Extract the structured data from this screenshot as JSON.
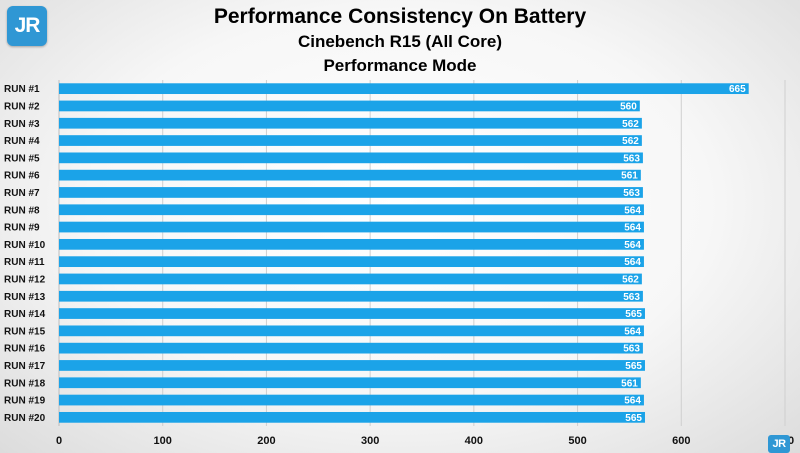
{
  "logo": {
    "text": "JR"
  },
  "chart_data": {
    "type": "bar",
    "orientation": "horizontal",
    "title": "Performance Consistency On Battery",
    "subtitle": "Cinebench R15 (All Core)",
    "subtitle2": "Performance Mode",
    "categories": [
      "RUN #1",
      "RUN #2",
      "RUN #3",
      "RUN #4",
      "RUN #5",
      "RUN #6",
      "RUN #7",
      "RUN #8",
      "RUN #9",
      "RUN #10",
      "RUN #11",
      "RUN #12",
      "RUN #13",
      "RUN #14",
      "RUN #15",
      "RUN #16",
      "RUN #17",
      "RUN #18",
      "RUN #19",
      "RUN #20"
    ],
    "values": [
      665,
      560,
      562,
      562,
      563,
      561,
      563,
      564,
      564,
      564,
      564,
      562,
      563,
      565,
      564,
      563,
      565,
      561,
      564,
      565
    ],
    "xlim": [
      0,
      700
    ],
    "xticks": [
      "0",
      "100",
      "200",
      "300",
      "400",
      "500",
      "600",
      "700"
    ],
    "grid": true,
    "bar_color": "#1ba3e8"
  }
}
